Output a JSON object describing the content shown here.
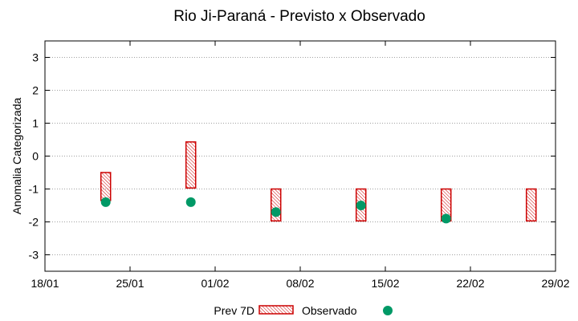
{
  "chart_data": {
    "type": "range-bar-scatter",
    "title": "Rio Ji-Paraná - Previsto x Observado",
    "xlabel": "",
    "ylabel": "Anomalia Categorizada",
    "xlim_days": [
      0,
      42
    ],
    "ylim": [
      -3.5,
      3.5
    ],
    "x_ticks": [
      {
        "day": 0,
        "label": "18/01"
      },
      {
        "day": 7,
        "label": "25/01"
      },
      {
        "day": 14,
        "label": "01/02"
      },
      {
        "day": 21,
        "label": "08/02"
      },
      {
        "day": 28,
        "label": "15/02"
      },
      {
        "day": 35,
        "label": "22/02"
      },
      {
        "day": 42,
        "label": "29/02"
      }
    ],
    "y_ticks": [
      {
        "value": 3,
        "label": "3"
      },
      {
        "value": 2,
        "label": "2"
      },
      {
        "value": 1,
        "label": "1"
      },
      {
        "value": 0,
        "label": "0"
      },
      {
        "value": -1,
        "label": "-1"
      },
      {
        "value": -2,
        "label": "-2"
      },
      {
        "value": -3,
        "label": "-3"
      }
    ],
    "grid": true,
    "series": [
      {
        "name": "Prev 7D",
        "kind": "range-bar",
        "color": "#cc0000",
        "points": [
          {
            "day": 5,
            "low": -1.35,
            "high": -0.5
          },
          {
            "day": 12,
            "low": -0.97,
            "high": 0.43
          },
          {
            "day": 19,
            "low": -1.97,
            "high": -1.0
          },
          {
            "day": 26,
            "low": -1.97,
            "high": -1.0
          },
          {
            "day": 33,
            "low": -1.97,
            "high": -1.0
          },
          {
            "day": 40,
            "low": -1.97,
            "high": -1.0
          }
        ]
      },
      {
        "name": "Observado",
        "kind": "scatter",
        "color": "#009966",
        "points": [
          {
            "day": 5,
            "value": -1.4
          },
          {
            "day": 12,
            "value": -1.4
          },
          {
            "day": 19,
            "value": -1.7
          },
          {
            "day": 26,
            "value": -1.5
          },
          {
            "day": 33,
            "value": -1.9
          }
        ]
      }
    ],
    "legend": {
      "placement": "bottom-center",
      "prev_label": "Prev 7D",
      "obs_label": "Observado"
    }
  }
}
